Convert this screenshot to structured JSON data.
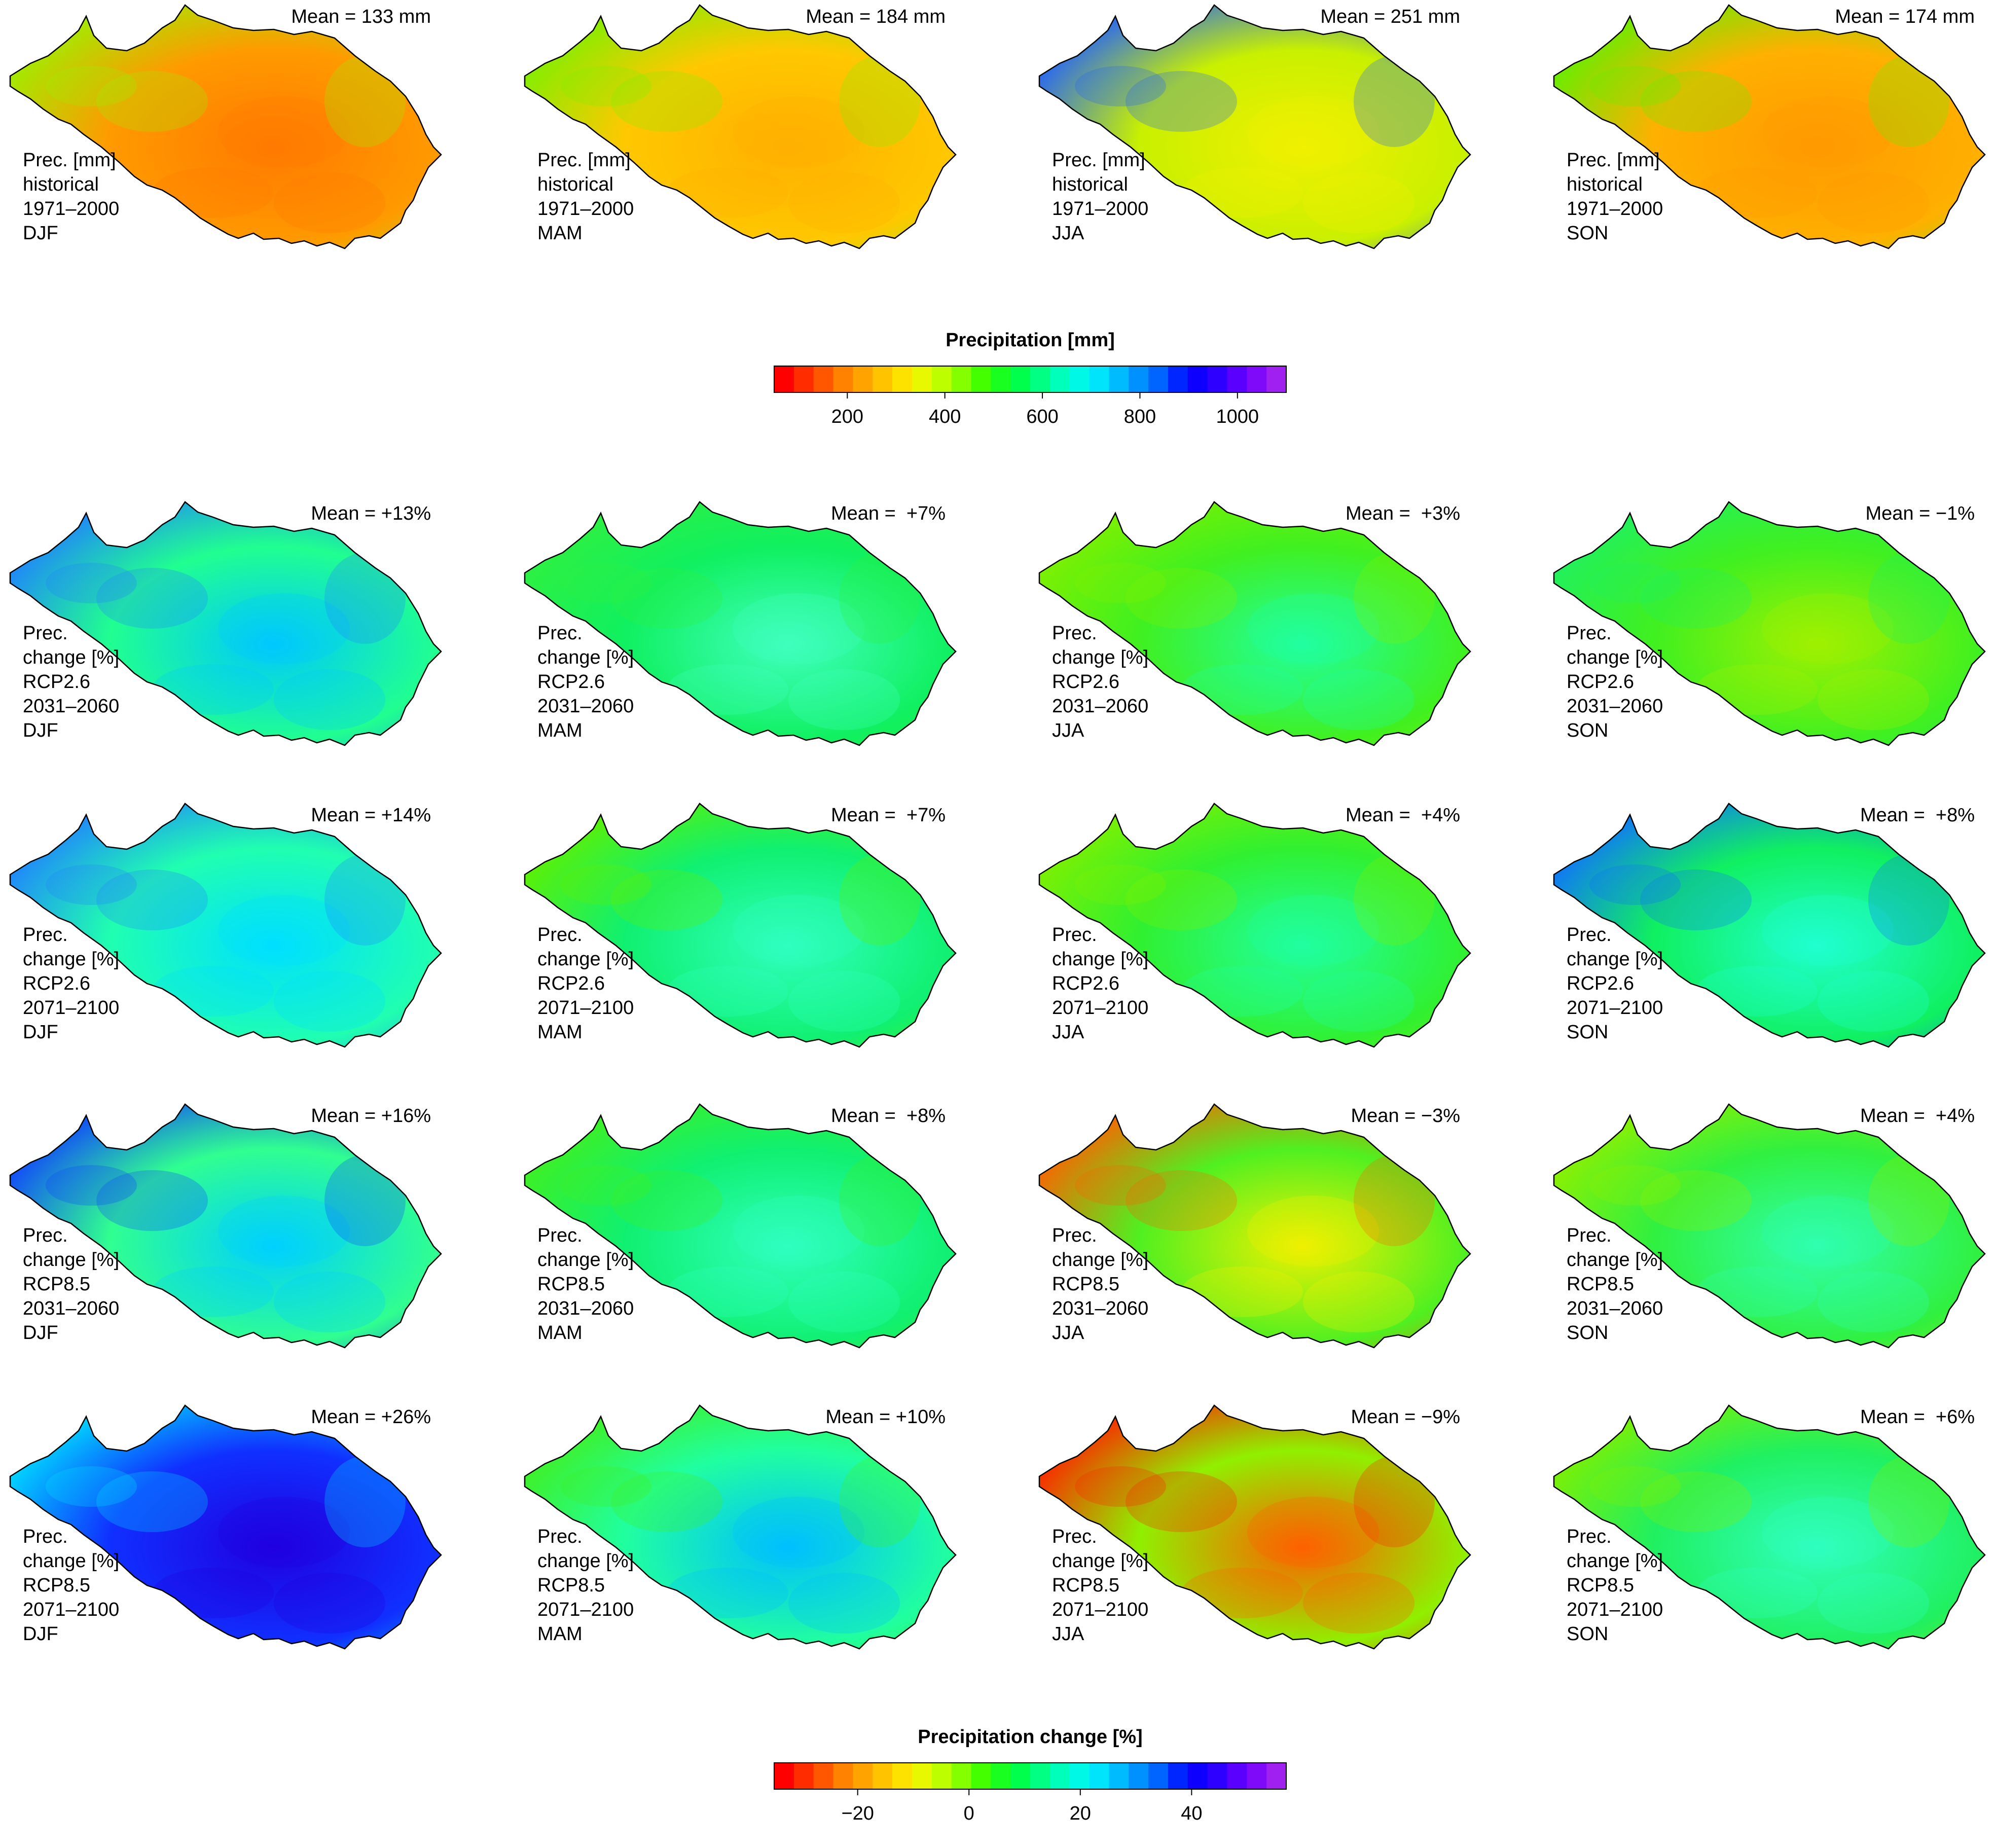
{
  "colorbars": {
    "precipitation": {
      "title": "Precipitation [mm]",
      "range": [
        50,
        1100
      ],
      "ticks": [
        200,
        400,
        600,
        800,
        1000
      ],
      "tick_labels": [
        "200",
        "400",
        "600",
        "800",
        "1000"
      ],
      "color_ramp": [
        "#ff0000",
        "#ff4000",
        "#ff8000",
        "#ffb000",
        "#ffe000",
        "#e0ff00",
        "#90ff00",
        "#30ff00",
        "#00ff40",
        "#00ff90",
        "#00ffe0",
        "#00e0ff",
        "#00a0ff",
        "#0060ff",
        "#0000ff",
        "#3000ff",
        "#7000ff",
        "#a020f0"
      ]
    },
    "change": {
      "title": "Precipitation change [%]",
      "range": [
        -35,
        57
      ],
      "ticks": [
        -20,
        0,
        20,
        40
      ],
      "tick_labels": [
        "−20",
        "0",
        "20",
        "40"
      ],
      "color_ramp": [
        "#ff0000",
        "#ff4000",
        "#ff8000",
        "#ffb000",
        "#ffe000",
        "#e0ff00",
        "#90ff00",
        "#30ff00",
        "#00ff40",
        "#00ff90",
        "#00ffe0",
        "#00e0ff",
        "#00a0ff",
        "#0060ff",
        "#0000ff",
        "#3000ff",
        "#7000ff",
        "#a020f0"
      ]
    }
  },
  "panels": [
    {
      "mean": "Mean = 133 mm",
      "lines": [
        "Prec. [mm]",
        "historical",
        "1971–2000",
        "DJF"
      ],
      "base_color": "#ff9a00",
      "accent_color": "#ff7a00",
      "edge_color": "#9cf000"
    },
    {
      "mean": "Mean = 184 mm",
      "lines": [
        "Prec. [mm]",
        "historical",
        "1971–2000",
        "MAM"
      ],
      "base_color": "#ffc800",
      "accent_color": "#ffb000",
      "edge_color": "#7cf000"
    },
    {
      "mean": "Mean = 251 mm",
      "lines": [
        "Prec. [mm]",
        "historical",
        "1971–2000",
        "JJA"
      ],
      "base_color": "#c8f000",
      "accent_color": "#f0f000",
      "edge_color": "#2060ff"
    },
    {
      "mean": "Mean = 174 mm",
      "lines": [
        "Prec. [mm]",
        "historical",
        "1971–2000",
        "SON"
      ],
      "base_color": "#ffb000",
      "accent_color": "#ff9a00",
      "edge_color": "#60f000"
    },
    {
      "mean": "Mean = +13%",
      "lines": [
        "Prec.",
        "change [%]",
        "RCP2.6",
        "2031–2060",
        "DJF"
      ],
      "base_color": "#20ff90",
      "accent_color": "#00c8ff",
      "edge_color": "#2080ff"
    },
    {
      "mean": "Mean =  +7%",
      "lines": [
        "Prec.",
        "change [%]",
        "RCP2.6",
        "2031–2060",
        "MAM"
      ],
      "base_color": "#10f060",
      "accent_color": "#40ffc0",
      "edge_color": "#30f040"
    },
    {
      "mean": "Mean =  +3%",
      "lines": [
        "Prec.",
        "change [%]",
        "RCP2.6",
        "2031–2060",
        "JJA"
      ],
      "base_color": "#40f020",
      "accent_color": "#20ffa0",
      "edge_color": "#80f000"
    },
    {
      "mean": "Mean = −1%",
      "lines": [
        "Prec.",
        "change [%]",
        "RCP2.6",
        "2031–2060",
        "SON"
      ],
      "base_color": "#40f020",
      "accent_color": "#a0f000",
      "edge_color": "#20f060"
    },
    {
      "mean": "Mean = +14%",
      "lines": [
        "Prec.",
        "change [%]",
        "RCP2.6",
        "2071–2100",
        "DJF"
      ],
      "base_color": "#20ffb0",
      "accent_color": "#00e0ff",
      "edge_color": "#2080ff"
    },
    {
      "mean": "Mean =  +7%",
      "lines": [
        "Prec.",
        "change [%]",
        "RCP2.6",
        "2071–2100",
        "MAM"
      ],
      "base_color": "#10f070",
      "accent_color": "#30ffc0",
      "edge_color": "#60f000"
    },
    {
      "mean": "Mean =  +4%",
      "lines": [
        "Prec.",
        "change [%]",
        "RCP2.6",
        "2071–2100",
        "JJA"
      ],
      "base_color": "#30f030",
      "accent_color": "#20ffa0",
      "edge_color": "#80f000"
    },
    {
      "mean": "Mean =  +8%",
      "lines": [
        "Prec.",
        "change [%]",
        "RCP2.6",
        "2071–2100",
        "SON"
      ],
      "base_color": "#10f060",
      "accent_color": "#20ffd0",
      "edge_color": "#1070ff"
    },
    {
      "mean": "Mean = +16%",
      "lines": [
        "Prec.",
        "change [%]",
        "RCP8.5",
        "2031–2060",
        "DJF"
      ],
      "base_color": "#30ff90",
      "accent_color": "#00d0ff",
      "edge_color": "#1040ff"
    },
    {
      "mean": "Mean =  +8%",
      "lines": [
        "Prec.",
        "change [%]",
        "RCP8.5",
        "2031–2060",
        "MAM"
      ],
      "base_color": "#10f070",
      "accent_color": "#30ffc0",
      "edge_color": "#40f020"
    },
    {
      "mean": "Mean = −3%",
      "lines": [
        "Prec.",
        "change [%]",
        "RCP8.5",
        "2031–2060",
        "JJA"
      ],
      "base_color": "#50f020",
      "accent_color": "#f0f000",
      "edge_color": "#ff6000"
    },
    {
      "mean": "Mean =  +4%",
      "lines": [
        "Prec.",
        "change [%]",
        "RCP8.5",
        "2031–2060",
        "SON"
      ],
      "base_color": "#30f040",
      "accent_color": "#30ffb0",
      "edge_color": "#90f000"
    },
    {
      "mean": "Mean = +26%",
      "lines": [
        "Prec.",
        "change [%]",
        "RCP8.5",
        "2071–2100",
        "DJF"
      ],
      "base_color": "#1030ff",
      "accent_color": "#2000e0",
      "edge_color": "#00e0ff"
    },
    {
      "mean": "Mean = +10%",
      "lines": [
        "Prec.",
        "change [%]",
        "RCP8.5",
        "2071–2100",
        "MAM"
      ],
      "base_color": "#20ffa0",
      "accent_color": "#00c0ff",
      "edge_color": "#40f020"
    },
    {
      "mean": "Mean = −9%",
      "lines": [
        "Prec.",
        "change [%]",
        "RCP8.5",
        "2071–2100",
        "JJA"
      ],
      "base_color": "#90f000",
      "accent_color": "#ff6000",
      "edge_color": "#ff2000"
    },
    {
      "mean": "Mean =  +6%",
      "lines": [
        "Prec.",
        "change [%]",
        "RCP8.5",
        "2071–2100",
        "SON"
      ],
      "base_color": "#20f060",
      "accent_color": "#30ffc0",
      "edge_color": "#80f000"
    }
  ]
}
